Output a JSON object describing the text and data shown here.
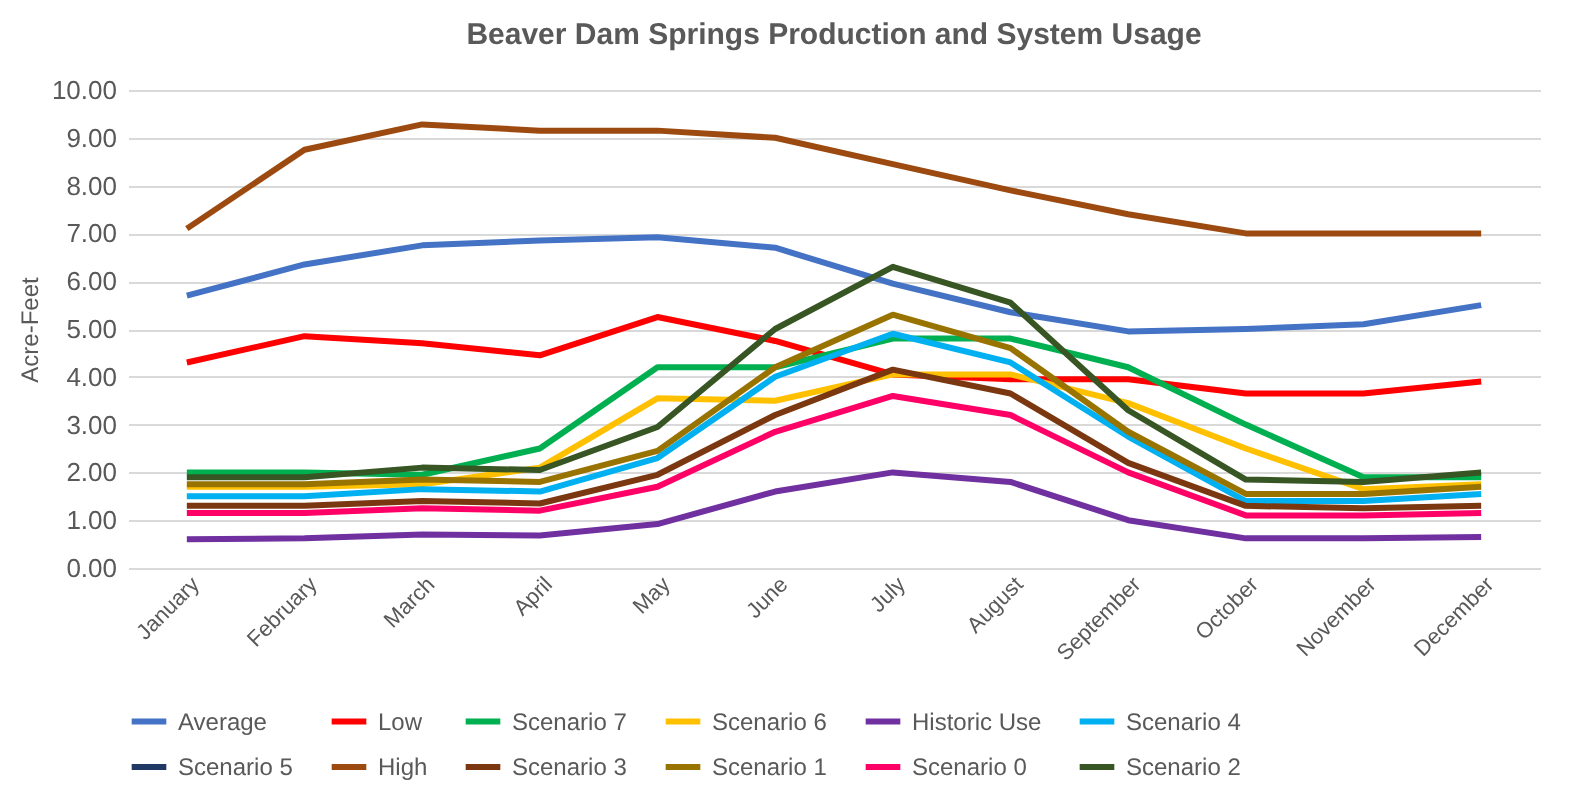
{
  "chart_data": {
    "type": "line",
    "title": "Beaver Dam Springs Production and System Usage",
    "ylabel": "Acre-Feet",
    "categories": [
      "January",
      "February",
      "March",
      "April",
      "May",
      "June",
      "July",
      "August",
      "September",
      "October",
      "November",
      "December"
    ],
    "ylim": [
      0,
      10
    ],
    "yticks": [
      {
        "value": 0,
        "label": "0.00"
      },
      {
        "value": 1,
        "label": "1.00"
      },
      {
        "value": 2,
        "label": "2.00"
      },
      {
        "value": 3,
        "label": "3.00"
      },
      {
        "value": 4,
        "label": "4.00"
      },
      {
        "value": 5,
        "label": "5.00"
      },
      {
        "value": 6,
        "label": "6.00"
      },
      {
        "value": 7,
        "label": "7.00"
      },
      {
        "value": 8,
        "label": "8.00"
      },
      {
        "value": 9,
        "label": "9.00"
      },
      {
        "value": 10,
        "label": "10.00"
      }
    ],
    "grid": "y",
    "legend": "bottom",
    "marker": "none",
    "line_style": "solid",
    "series": [
      {
        "name": "Average",
        "color": "#4472c4",
        "values": [
          5.7,
          6.35,
          6.75,
          6.85,
          6.92,
          6.7,
          5.95,
          5.35,
          4.95,
          5.0,
          5.1,
          5.5
        ]
      },
      {
        "name": "Low",
        "color": "#ff0000",
        "values": [
          4.3,
          4.85,
          4.7,
          4.45,
          5.25,
          4.75,
          4.05,
          3.95,
          3.95,
          3.65,
          3.65,
          3.9
        ]
      },
      {
        "name": "Scenario 7",
        "color": "#00b050",
        "values": [
          2.0,
          2.0,
          1.95,
          2.5,
          4.2,
          4.2,
          4.8,
          4.8,
          4.2,
          3.0,
          1.9,
          1.9
        ]
      },
      {
        "name": "Scenario 6",
        "color": "#ffc000",
        "values": [
          1.7,
          1.7,
          1.75,
          2.1,
          3.55,
          3.5,
          4.05,
          4.05,
          3.45,
          2.5,
          1.65,
          1.75
        ]
      },
      {
        "name": "Historic Use",
        "color": "#7030a0",
        "values": [
          0.6,
          0.62,
          0.7,
          0.68,
          0.92,
          1.6,
          2.0,
          1.8,
          1.0,
          0.62,
          0.62,
          0.65
        ]
      },
      {
        "name": "Scenario 4",
        "color": "#00b0f0",
        "values": [
          1.5,
          1.5,
          1.65,
          1.6,
          2.3,
          4.0,
          4.9,
          4.3,
          2.75,
          1.4,
          1.4,
          1.55
        ]
      },
      {
        "name": "Scenario 5",
        "color": "#1f3864",
        "values": [
          null,
          null,
          null,
          null,
          null,
          null,
          null,
          null,
          null,
          null,
          null,
          null
        ]
      },
      {
        "name": "High",
        "color": "#9c4a10",
        "values": [
          7.1,
          8.75,
          9.28,
          9.15,
          9.15,
          9.0,
          8.45,
          7.9,
          7.4,
          7.0,
          7.0,
          7.0
        ]
      },
      {
        "name": "Scenario 3",
        "color": "#7b3810",
        "values": [
          1.3,
          1.3,
          1.4,
          1.35,
          1.95,
          3.2,
          4.15,
          3.65,
          2.2,
          1.3,
          1.25,
          1.3
        ]
      },
      {
        "name": "Scenario 1",
        "color": "#997300",
        "values": [
          1.75,
          1.75,
          1.85,
          1.8,
          2.45,
          4.2,
          5.3,
          4.6,
          2.85,
          1.55,
          1.55,
          1.7
        ]
      },
      {
        "name": "Scenario 0",
        "color": "#ff0066",
        "values": [
          1.15,
          1.15,
          1.25,
          1.2,
          1.7,
          2.85,
          3.6,
          3.2,
          2.0,
          1.1,
          1.1,
          1.15
        ]
      },
      {
        "name": "Scenario 2",
        "color": "#375623",
        "values": [
          1.9,
          1.9,
          2.1,
          2.05,
          2.95,
          5.0,
          6.3,
          5.55,
          3.3,
          1.85,
          1.8,
          2.0
        ]
      }
    ]
  }
}
